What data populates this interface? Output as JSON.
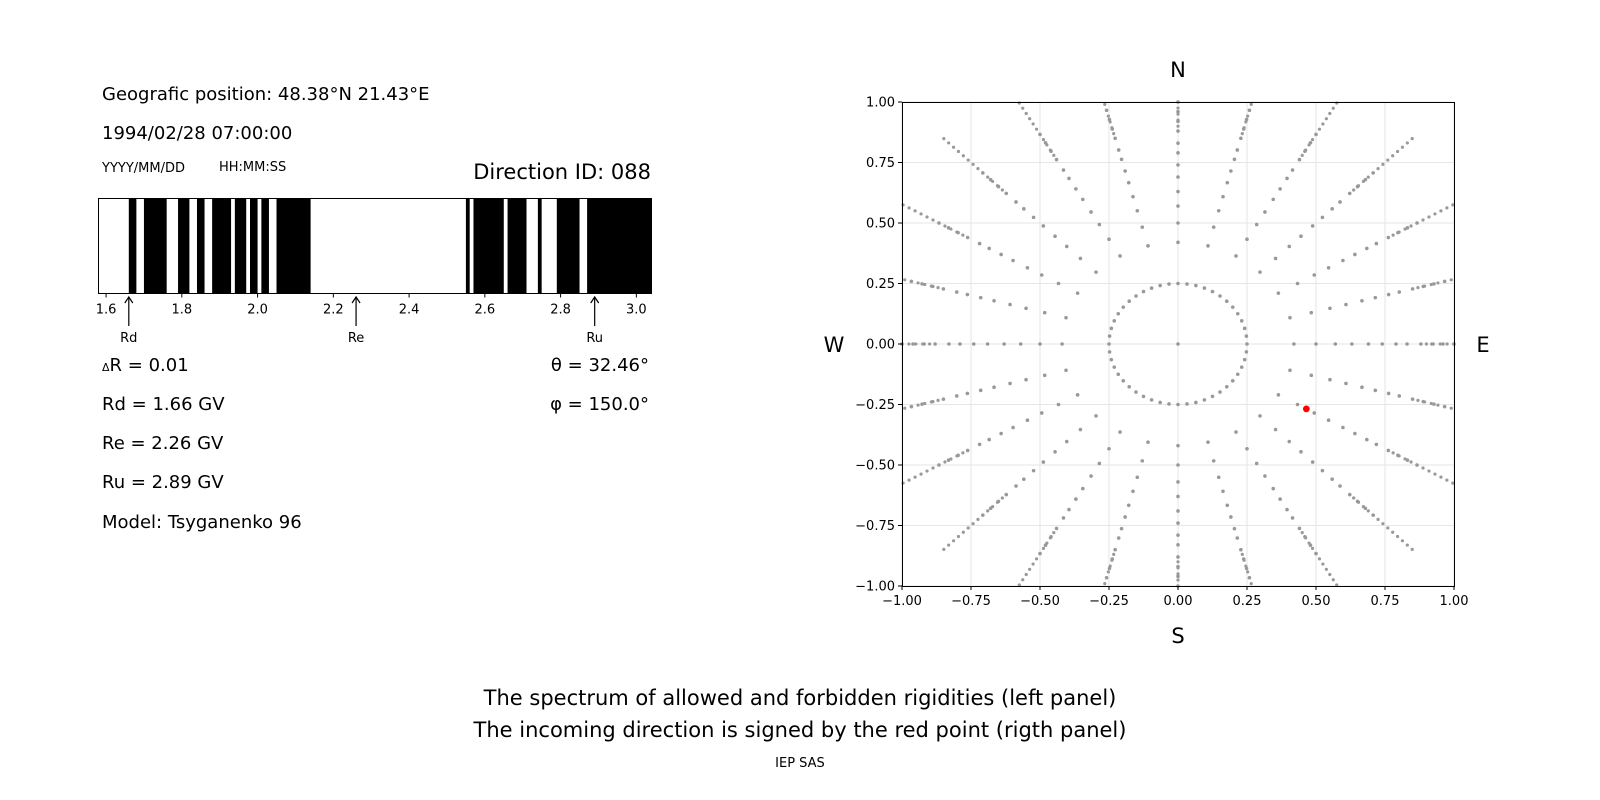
{
  "left_panel": {
    "position_label": "Geografic position: 48.38°N 21.43°E",
    "datetime": "1994/02/28 07:00:00",
    "date_format": "YYYY/MM/DD",
    "time_format": "HH:MM:SS",
    "direction_id": "Direction ID: 088",
    "delta_r": "R = 0.01",
    "delta_symbol": "Δ",
    "rd": "Rd = 1.66 GV",
    "re": "Re = 2.26 GV",
    "ru": "Ru = 2.89 GV",
    "model": "Model: Tsyganenko 96",
    "theta": "θ = 32.46°",
    "phi": "φ = 150.0°"
  },
  "captions": {
    "line1": "The spectrum of allowed and forbidden rigidities (left panel)",
    "line2": "The incoming direction is signed by the red point (rigth panel)",
    "footer": "IEP SAS"
  },
  "chart_data": [
    {
      "type": "spectrum",
      "xlim": [
        1.58,
        3.04
      ],
      "xticks": [
        1.6,
        1.8,
        2.0,
        2.2,
        2.4,
        2.6,
        2.8,
        3.0
      ],
      "xtick_labels": [
        "1.6",
        "1.8",
        "2.0",
        "2.2",
        "2.4",
        "2.6",
        "2.8",
        "3.0"
      ],
      "forbidden_bands": [
        [
          1.66,
          1.68
        ],
        [
          1.7,
          1.76
        ],
        [
          1.79,
          1.82
        ],
        [
          1.84,
          1.86
        ],
        [
          1.88,
          1.93
        ],
        [
          1.94,
          1.97
        ],
        [
          1.98,
          2.0
        ],
        [
          2.01,
          2.03
        ],
        [
          2.05,
          2.14
        ],
        [
          2.55,
          2.56
        ],
        [
          2.57,
          2.65
        ],
        [
          2.66,
          2.71
        ],
        [
          2.74,
          2.75
        ],
        [
          2.79,
          2.85
        ],
        [
          2.87,
          3.04
        ]
      ],
      "markers": [
        {
          "label": "Rd",
          "value": 1.66
        },
        {
          "label": "Re",
          "value": 2.26
        },
        {
          "label": "Ru",
          "value": 2.89
        }
      ],
      "colors": {
        "forbidden": "#000000",
        "allowed": "#ffffff"
      }
    },
    {
      "type": "scatter",
      "xlim": [
        -1,
        1
      ],
      "ylim": [
        -1,
        1
      ],
      "xticks": [
        -1.0,
        -0.75,
        -0.5,
        -0.25,
        0.0,
        0.25,
        0.5,
        0.75,
        1.0
      ],
      "yticks": [
        -1.0,
        -0.75,
        -0.5,
        -0.25,
        0.0,
        0.25,
        0.5,
        0.75,
        1.0
      ],
      "xtick_labels": [
        "−1.00",
        "−0.75",
        "−0.50",
        "−0.25",
        "0.00",
        "0.25",
        "0.50",
        "0.75",
        "1.00"
      ],
      "ytick_labels": [
        "−1.00",
        "−0.75",
        "−0.50",
        "−0.25",
        "0.00",
        "0.25",
        "0.50",
        "0.75",
        "1.00"
      ],
      "grid": true,
      "compass": {
        "north": "N",
        "south": "S",
        "east": "E",
        "west": "W"
      },
      "grid_directions": {
        "center": [
          0,
          0
        ],
        "rings": [
          0.25,
          0.42,
          0.5,
          0.57,
          0.63,
          0.69,
          0.74,
          0.79,
          0.83,
          0.88,
          0.92,
          0.96,
          1.0
        ],
        "spokes_deg": [
          0,
          15,
          30,
          45,
          60,
          75,
          90,
          105,
          120,
          135,
          150,
          165,
          180,
          195,
          210,
          225,
          240,
          255,
          270,
          285,
          300,
          315,
          330,
          345
        ],
        "color": "#999999"
      },
      "highlight": {
        "x": 0.465,
        "y": -0.268,
        "color": "#ff0000"
      }
    }
  ]
}
